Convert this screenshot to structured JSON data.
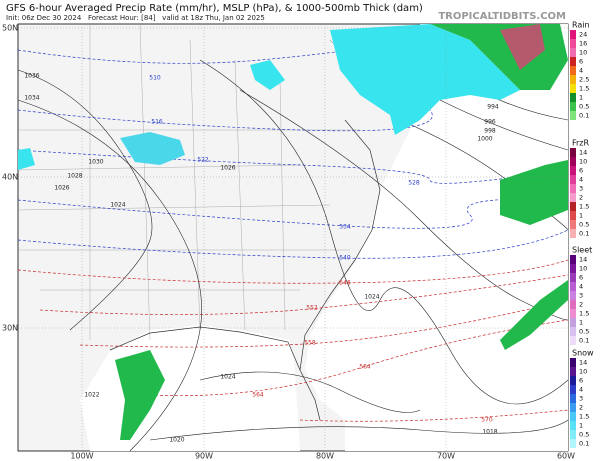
{
  "header": {
    "title": "GFS 6-hour Averaged Precip Rate (mm/hr), MSLP (hPa), & 1000-500mb Thick (dam)",
    "subtitle": "Init: 06z Dec 30 2024   Forecast Hour: [84]   valid at 18z Thu, Jan 02 2025",
    "site": "TROPICALTIDBITS.COM"
  },
  "axes": {
    "lat_labels": [
      "50N",
      "40N",
      "30N"
    ],
    "lon_labels": [
      "100W",
      "90W",
      "80W",
      "70W",
      "60W"
    ]
  },
  "contours": {
    "isobar_labels": [
      "1036",
      "1034",
      "1030",
      "1028",
      "1026",
      "1024",
      "1026",
      "1024",
      "1024",
      "1022",
      "1020",
      "1018",
      "1000",
      "998",
      "996",
      "994"
    ],
    "thickness_blue_labels": [
      "510",
      "516",
      "522",
      "528",
      "534",
      "540"
    ],
    "thickness_red_labels": [
      "546",
      "552",
      "558",
      "564",
      "564",
      "570"
    ]
  },
  "legends": [
    {
      "title": "Rain",
      "levels": [
        "24",
        "16",
        "10",
        "6",
        "4",
        "2.5",
        "1.5",
        "1",
        "0.5",
        "0.1"
      ]
    },
    {
      "title": "FrzR",
      "levels": [
        "14",
        "10",
        "6",
        "4",
        "3",
        "2",
        "1.5",
        "1",
        "0.5",
        "0.1"
      ]
    },
    {
      "title": "Sleet",
      "levels": [
        "14",
        "10",
        "6",
        "4",
        "3",
        "2",
        "1.5",
        "1",
        "0.5",
        "0.1"
      ]
    },
    {
      "title": "Snow",
      "levels": [
        "14",
        "10",
        "6",
        "4",
        "3",
        "2",
        "1.5",
        "1",
        "0.5",
        "0.1"
      ]
    }
  ]
}
